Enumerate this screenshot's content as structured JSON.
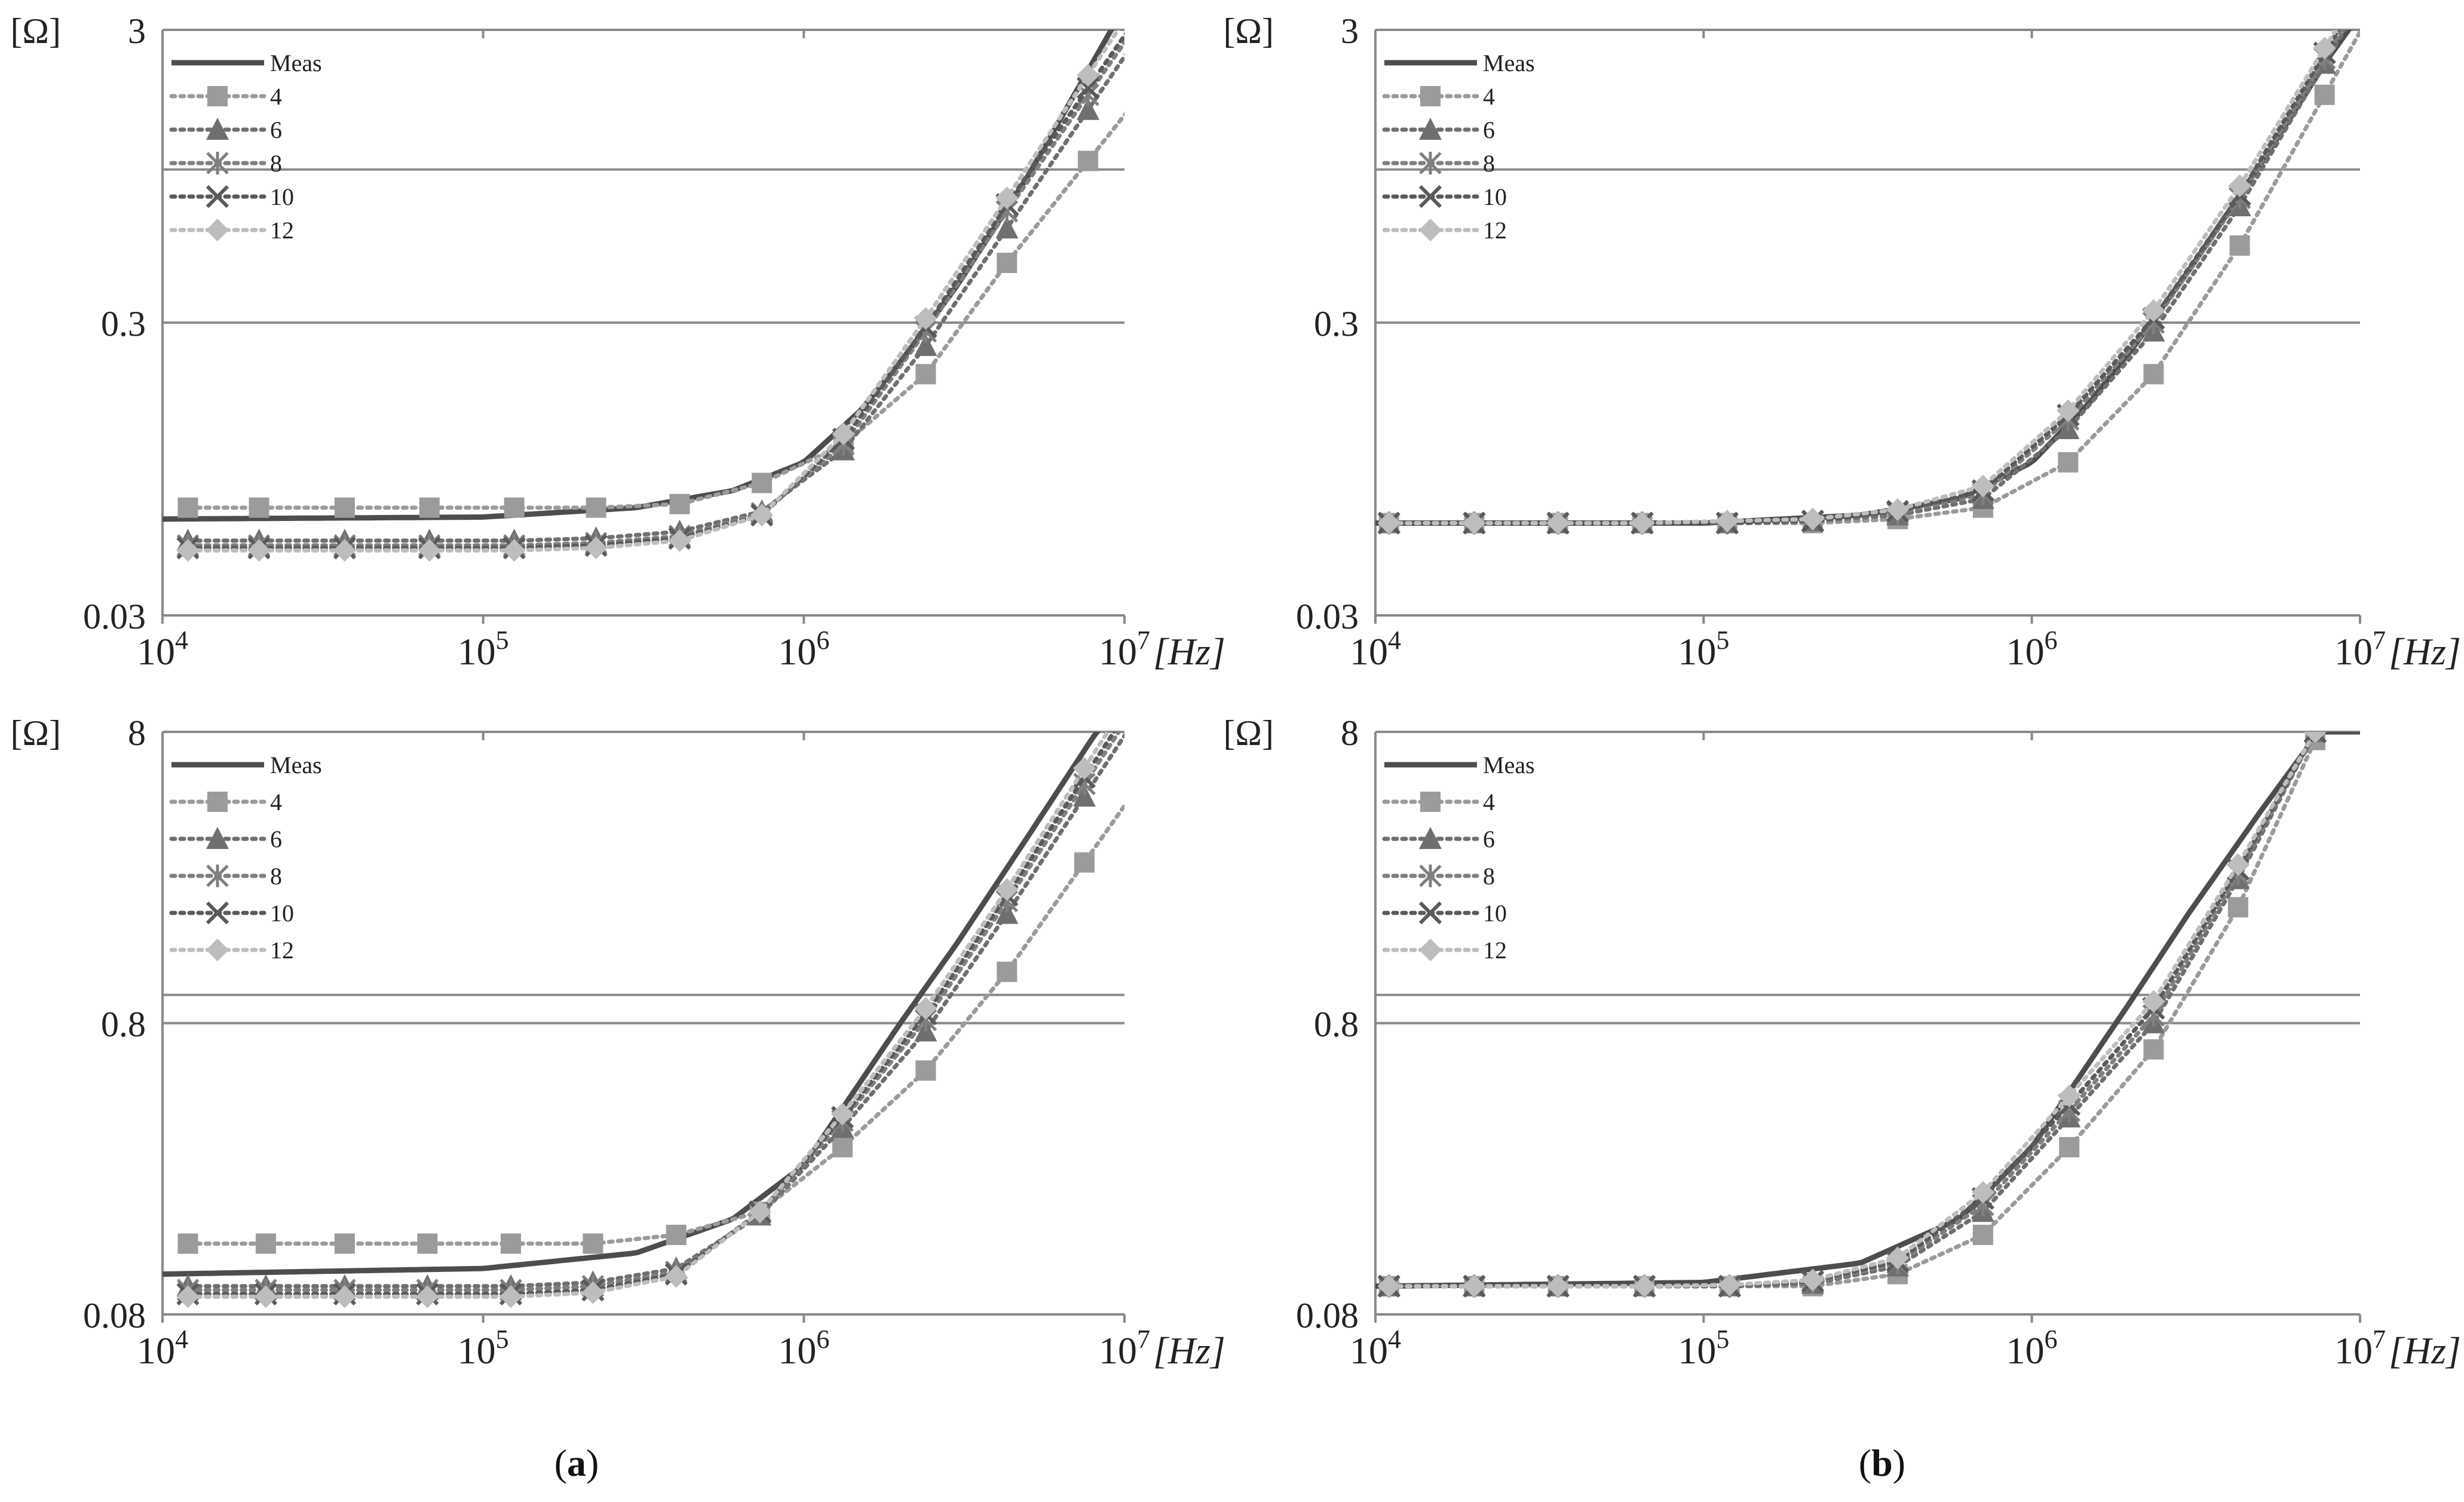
{
  "figure": {
    "captions": [
      {
        "paren_open": "(",
        "letter": "a",
        "paren_close": ")"
      },
      {
        "paren_open": "(",
        "letter": "b",
        "paren_close": ")"
      }
    ]
  },
  "style": {
    "meas_color": "#4d4d4d",
    "grid_color": "#8a8a8a",
    "series_colors": {
      "Meas": "#4d4d4d",
      "4": "#9b9b9b",
      "6": "#6f6f6f",
      "8": "#7f7f7f",
      "10": "#5a5a5a",
      "12": "#bdbdbd"
    },
    "markers": {
      "4": "square",
      "6": "triangle",
      "8": "star",
      "10": "cross",
      "12": "diamond"
    }
  },
  "chart_data": [
    {
      "id": "a-top",
      "type": "line",
      "panel": "a",
      "ylabel": "[Ω]",
      "xlabel": "[Hz]",
      "xscale": "log",
      "yscale": "log",
      "xlim": [
        10000,
        10000000
      ],
      "ylim": [
        0.03,
        3
      ],
      "xticks": [
        {
          "base": "10",
          "exp": "4"
        },
        {
          "base": "10",
          "exp": "5"
        },
        {
          "base": "10",
          "exp": "6"
        },
        {
          "base": "10",
          "exp": "7"
        }
      ],
      "yticks": [
        {
          "value": 0.03,
          "label": "0.03"
        },
        {
          "value": 0.3,
          "label": "0.3"
        },
        {
          "value": 3,
          "label": "3"
        }
      ],
      "gridlines": [
        1.0,
        0.3
      ],
      "legend_position": "top-left",
      "legend_labels": [
        "Meas",
        "4",
        "6",
        "8",
        "10",
        "12"
      ],
      "marker_x": [
        12000,
        20000,
        37000,
        68000,
        125000,
        225000,
        410000,
        740000,
        1330000,
        2400000,
        4300000,
        7700000
      ],
      "series": [
        {
          "name": "Meas",
          "x": [
            10000,
            100000,
            300000,
            600000,
            1000000,
            1500000,
            2000000,
            3000000,
            5000000,
            10000000
          ],
          "values": [
            0.064,
            0.065,
            0.07,
            0.08,
            0.1,
            0.15,
            0.22,
            0.4,
            0.95,
            3.6
          ]
        },
        {
          "name": "4",
          "values": [
            0.07,
            0.07,
            0.07,
            0.07,
            0.07,
            0.07,
            0.072,
            0.085,
            0.115,
            0.2,
            0.48,
            1.07
          ]
        },
        {
          "name": "6",
          "values": [
            0.054,
            0.054,
            0.054,
            0.054,
            0.054,
            0.055,
            0.058,
            0.068,
            0.11,
            0.25,
            0.63,
            1.6
          ]
        },
        {
          "name": "8",
          "values": [
            0.052,
            0.052,
            0.052,
            0.052,
            0.052,
            0.053,
            0.056,
            0.067,
            0.115,
            0.28,
            0.72,
            1.8
          ]
        },
        {
          "name": "10",
          "values": [
            0.051,
            0.051,
            0.051,
            0.051,
            0.051,
            0.052,
            0.055,
            0.066,
            0.12,
            0.29,
            0.76,
            1.9
          ]
        },
        {
          "name": "12",
          "values": [
            0.05,
            0.05,
            0.05,
            0.05,
            0.05,
            0.051,
            0.054,
            0.066,
            0.125,
            0.31,
            0.8,
            2.1
          ]
        }
      ]
    },
    {
      "id": "b-top",
      "type": "line",
      "panel": "b",
      "ylabel": "[Ω]",
      "xlabel": "[Hz]",
      "xscale": "log",
      "yscale": "log",
      "xlim": [
        10000,
        10000000
      ],
      "ylim": [
        0.03,
        3
      ],
      "xticks": [
        {
          "base": "10",
          "exp": "4"
        },
        {
          "base": "10",
          "exp": "5"
        },
        {
          "base": "10",
          "exp": "6"
        },
        {
          "base": "10",
          "exp": "7"
        }
      ],
      "yticks": [
        {
          "value": 0.03,
          "label": "0.03"
        },
        {
          "value": 0.3,
          "label": "0.3"
        },
        {
          "value": 3,
          "label": "3"
        }
      ],
      "gridlines": [
        1.0,
        0.3
      ],
      "legend_position": "top-left",
      "legend_labels": [
        "Meas",
        "4",
        "6",
        "8",
        "10",
        "12"
      ],
      "marker_x": [
        11000,
        20000,
        36000,
        65000,
        118000,
        215000,
        390000,
        710000,
        1290000,
        2350000,
        4300000,
        7800000
      ],
      "series": [
        {
          "name": "Meas",
          "x": [
            10000,
            100000,
            300000,
            600000,
            1000000,
            1500000,
            2000000,
            3000000,
            5000000,
            8000000,
            10000000
          ],
          "values": [
            0.062,
            0.062,
            0.066,
            0.075,
            0.1,
            0.16,
            0.24,
            0.45,
            1.05,
            2.4,
            3.4
          ]
        },
        {
          "name": "4",
          "values": [
            0.062,
            0.062,
            0.062,
            0.062,
            0.062,
            0.062,
            0.064,
            0.07,
            0.1,
            0.2,
            0.55,
            1.8
          ]
        },
        {
          "name": "6",
          "values": [
            0.062,
            0.062,
            0.062,
            0.062,
            0.062,
            0.063,
            0.066,
            0.075,
            0.13,
            0.28,
            0.75,
            2.3
          ]
        },
        {
          "name": "8",
          "values": [
            0.062,
            0.062,
            0.062,
            0.062,
            0.062,
            0.063,
            0.067,
            0.078,
            0.14,
            0.3,
            0.8,
            2.4
          ]
        },
        {
          "name": "10",
          "values": [
            0.062,
            0.062,
            0.062,
            0.062,
            0.062,
            0.063,
            0.068,
            0.08,
            0.145,
            0.31,
            0.82,
            2.5
          ]
        },
        {
          "name": "12",
          "values": [
            0.062,
            0.062,
            0.062,
            0.062,
            0.063,
            0.064,
            0.069,
            0.083,
            0.15,
            0.33,
            0.88,
            2.6
          ]
        }
      ]
    },
    {
      "id": "a-bottom",
      "type": "line",
      "panel": "a",
      "ylabel": "[Ω]",
      "xlabel": "[Hz]",
      "xscale": "log",
      "yscale": "log",
      "xlim": [
        10000,
        10000000
      ],
      "ylim": [
        0.08,
        8
      ],
      "xticks": [
        {
          "base": "10",
          "exp": "4"
        },
        {
          "base": "10",
          "exp": "5"
        },
        {
          "base": "10",
          "exp": "6"
        },
        {
          "base": "10",
          "exp": "7"
        }
      ],
      "yticks": [
        {
          "value": 0.08,
          "label": "0.08"
        },
        {
          "value": 0.8,
          "label": "0.8"
        },
        {
          "value": 8,
          "label": "8"
        }
      ],
      "gridlines": [
        1.0,
        0.8
      ],
      "legend_position": "top-left",
      "legend_labels": [
        "Meas",
        "4",
        "6",
        "8",
        "10",
        "12"
      ],
      "marker_x": [
        12000,
        21000,
        37000,
        67000,
        122000,
        220000,
        400000,
        730000,
        1320000,
        2400000,
        4300000,
        7500000
      ],
      "series": [
        {
          "name": "Meas",
          "x": [
            10000,
            100000,
            300000,
            600000,
            1000000,
            2000000,
            3000000,
            5000000,
            8000000,
            10000000
          ],
          "values": [
            0.11,
            0.115,
            0.13,
            0.17,
            0.26,
            0.8,
            1.5,
            3.5,
            7.7,
            10.5
          ]
        },
        {
          "name": "4",
          "values": [
            0.14,
            0.14,
            0.14,
            0.14,
            0.14,
            0.14,
            0.15,
            0.18,
            0.3,
            0.55,
            1.2,
            2.85
          ]
        },
        {
          "name": "6",
          "values": [
            0.1,
            0.1,
            0.1,
            0.1,
            0.1,
            0.103,
            0.115,
            0.175,
            0.35,
            0.75,
            1.9,
            4.8
          ]
        },
        {
          "name": "8",
          "values": [
            0.097,
            0.097,
            0.097,
            0.097,
            0.097,
            0.1,
            0.112,
            0.178,
            0.37,
            0.82,
            2.1,
            5.3
          ]
        },
        {
          "name": "10",
          "values": [
            0.094,
            0.094,
            0.094,
            0.094,
            0.094,
            0.097,
            0.11,
            0.18,
            0.38,
            0.86,
            2.2,
            5.6
          ]
        },
        {
          "name": "12",
          "values": [
            0.092,
            0.092,
            0.092,
            0.092,
            0.092,
            0.095,
            0.108,
            0.18,
            0.39,
            0.9,
            2.3,
            6.0
          ]
        }
      ]
    },
    {
      "id": "b-bottom",
      "type": "line",
      "panel": "b",
      "ylabel": "[Ω]",
      "xlabel": "[Hz]",
      "xscale": "log",
      "yscale": "log",
      "xlim": [
        10000,
        10000000
      ],
      "ylim": [
        0.08,
        8
      ],
      "xticks": [
        {
          "base": "10",
          "exp": "4"
        },
        {
          "base": "10",
          "exp": "5"
        },
        {
          "base": "10",
          "exp": "6"
        },
        {
          "base": "10",
          "exp": "7"
        }
      ],
      "yticks": [
        {
          "value": 0.08,
          "label": "0.08"
        },
        {
          "value": 0.8,
          "label": "0.8"
        },
        {
          "value": 8,
          "label": "8"
        }
      ],
      "gridlines": [
        1.0,
        0.8
      ],
      "legend_position": "top-left",
      "legend_labels": [
        "Meas",
        "4",
        "6",
        "8",
        "10",
        "12"
      ],
      "marker_x": [
        11000,
        20000,
        36000,
        66000,
        120000,
        215000,
        390000,
        710000,
        1300000,
        2350000,
        4250000,
        7300000
      ],
      "series": [
        {
          "name": "Meas",
          "x": [
            10000,
            100000,
            300000,
            600000,
            1000000,
            2000000,
            3000000,
            5000000,
            7500000
          ],
          "values": [
            0.1,
            0.103,
            0.12,
            0.17,
            0.3,
            0.95,
            1.9,
            4.3,
            8.0
          ]
        },
        {
          "name": "4",
          "values": [
            0.1,
            0.1,
            0.1,
            0.1,
            0.1,
            0.1,
            0.11,
            0.15,
            0.3,
            0.65,
            2.0,
            7.5
          ]
        },
        {
          "name": "6",
          "values": [
            0.1,
            0.1,
            0.1,
            0.1,
            0.1,
            0.102,
            0.117,
            0.18,
            0.38,
            0.8,
            2.5,
            8.0
          ]
        },
        {
          "name": "8",
          "values": [
            0.1,
            0.1,
            0.1,
            0.1,
            0.1,
            0.103,
            0.12,
            0.19,
            0.4,
            0.85,
            2.6,
            8.0
          ]
        },
        {
          "name": "10",
          "values": [
            0.1,
            0.1,
            0.1,
            0.1,
            0.1,
            0.104,
            0.122,
            0.2,
            0.42,
            0.9,
            2.7,
            8.0
          ]
        },
        {
          "name": "12",
          "values": [
            0.1,
            0.1,
            0.1,
            0.1,
            0.101,
            0.105,
            0.125,
            0.21,
            0.45,
            0.95,
            2.8,
            8.0
          ]
        }
      ]
    }
  ]
}
